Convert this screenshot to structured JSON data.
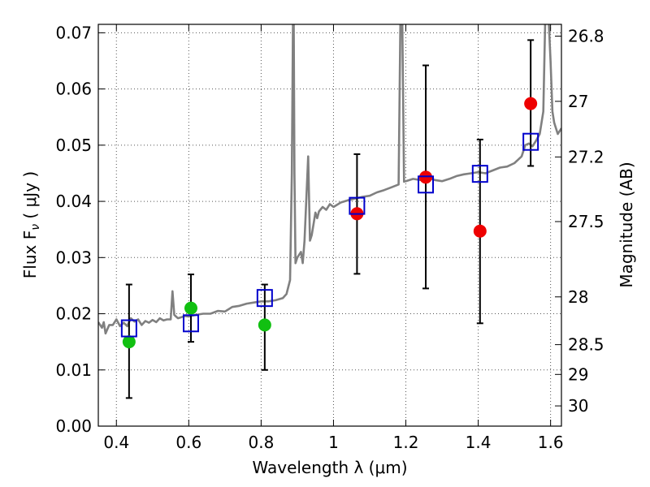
{
  "chart_data": {
    "type": "scatter",
    "xlabel": "Wavelength  λ (μm)",
    "ylabel": "Flux  F",
    "ylabel_sub": "ν",
    "ylabel_unit": "  ( μJy )",
    "ylabel_right": "Magnitude (AB)",
    "xlim": [
      0.35,
      1.63
    ],
    "ylim": [
      0.0,
      0.0715
    ],
    "grid": true,
    "x_ticks": [
      0.4,
      0.6,
      0.8,
      1.0,
      1.2,
      1.4,
      1.6
    ],
    "x_tick_labels": [
      "0.4",
      "0.6",
      "0.8",
      "1",
      "1.2",
      "1.4",
      "1.6"
    ],
    "y_ticks": [
      0.0,
      0.01,
      0.02,
      0.03,
      0.04,
      0.05,
      0.06,
      0.07
    ],
    "y_tick_labels": [
      "0.00",
      "0.01",
      "0.02",
      "0.03",
      "0.04",
      "0.05",
      "0.06",
      "0.07"
    ],
    "mag_ticks": [
      {
        "label": "26.8",
        "flux": 0.0694
      },
      {
        "label": "27",
        "flux": 0.0578
      },
      {
        "label": "27.2",
        "flux": 0.0479
      },
      {
        "label": "27.5",
        "flux": 0.0364
      },
      {
        "label": "28",
        "flux": 0.023
      },
      {
        "label": "28.5",
        "flux": 0.0145
      },
      {
        "label": "29",
        "flux": 0.0092
      },
      {
        "label": "30",
        "flux": 0.0036
      }
    ],
    "colors": {
      "model": "#808080",
      "green": "#11c011",
      "red": "#ee0000",
      "blue": "#0000cc",
      "errorbar": "#000000",
      "grid": "#555555"
    },
    "series": [
      {
        "marker": "circle-green",
        "x": [
          0.435,
          0.606,
          0.81
        ],
        "y": [
          0.015,
          0.021,
          0.018
        ],
        "yerr_low": [
          0.005,
          0.015,
          0.01
        ],
        "yerr_high": [
          0.0252,
          0.027,
          0.0252
        ]
      },
      {
        "marker": "circle-red",
        "x": [
          1.065,
          1.255,
          1.405,
          1.545
        ],
        "y": [
          0.0378,
          0.0443,
          0.0347,
          0.0574
        ],
        "yerr_low": [
          0.0271,
          0.0245,
          0.0183,
          0.0463
        ],
        "yerr_high": [
          0.0484,
          0.0642,
          0.051,
          0.0687
        ]
      },
      {
        "marker": "square-blue",
        "x": [
          0.435,
          0.606,
          0.81,
          1.065,
          1.255,
          1.405,
          1.545
        ],
        "y": [
          0.0174,
          0.0183,
          0.0228,
          0.0392,
          0.043,
          0.0449,
          0.0506
        ]
      }
    ],
    "model_spectrum": {
      "x": [
        0.35,
        0.36,
        0.365,
        0.37,
        0.38,
        0.39,
        0.4,
        0.41,
        0.42,
        0.43,
        0.44,
        0.45,
        0.46,
        0.47,
        0.48,
        0.49,
        0.5,
        0.51,
        0.52,
        0.53,
        0.54,
        0.55,
        0.555,
        0.56,
        0.565,
        0.57,
        0.58,
        0.59,
        0.6,
        0.62,
        0.64,
        0.66,
        0.68,
        0.7,
        0.72,
        0.74,
        0.76,
        0.78,
        0.8,
        0.82,
        0.84,
        0.86,
        0.87,
        0.88,
        0.885,
        0.888,
        0.89,
        0.892,
        0.895,
        0.9,
        0.91,
        0.915,
        0.92,
        0.93,
        0.935,
        0.94,
        0.95,
        0.955,
        0.96,
        0.97,
        0.98,
        0.99,
        1.0,
        1.02,
        1.04,
        1.06,
        1.08,
        1.1,
        1.12,
        1.14,
        1.16,
        1.18,
        1.185,
        1.19,
        1.195,
        1.2,
        1.22,
        1.24,
        1.26,
        1.28,
        1.3,
        1.32,
        1.34,
        1.36,
        1.38,
        1.4,
        1.42,
        1.44,
        1.46,
        1.48,
        1.5,
        1.52,
        1.53,
        1.54,
        1.55,
        1.56,
        1.57,
        1.58,
        1.585,
        1.59,
        1.595,
        1.6,
        1.605,
        1.61,
        1.615,
        1.62,
        1.625,
        1.63
      ],
      "y": [
        0.0185,
        0.0175,
        0.0185,
        0.0165,
        0.018,
        0.018,
        0.019,
        0.0178,
        0.0184,
        0.0178,
        0.0192,
        0.0186,
        0.019,
        0.018,
        0.0187,
        0.0184,
        0.0189,
        0.0185,
        0.0192,
        0.0188,
        0.019,
        0.019,
        0.024,
        0.0198,
        0.0195,
        0.0192,
        0.0194,
        0.0196,
        0.0195,
        0.0198,
        0.02,
        0.02,
        0.0205,
        0.0204,
        0.0212,
        0.0214,
        0.0218,
        0.022,
        0.0222,
        0.0222,
        0.0224,
        0.0228,
        0.0235,
        0.026,
        0.045,
        0.072,
        0.072,
        0.045,
        0.029,
        0.03,
        0.031,
        0.029,
        0.033,
        0.048,
        0.033,
        0.034,
        0.038,
        0.037,
        0.0382,
        0.039,
        0.0385,
        0.0395,
        0.039,
        0.0398,
        0.0402,
        0.0405,
        0.0408,
        0.041,
        0.0416,
        0.042,
        0.0425,
        0.043,
        0.072,
        0.072,
        0.0435,
        0.0436,
        0.044,
        0.0438,
        0.0442,
        0.0438,
        0.0436,
        0.044,
        0.0445,
        0.0448,
        0.045,
        0.0452,
        0.045,
        0.0455,
        0.046,
        0.0462,
        0.0468,
        0.048,
        0.05,
        0.0503,
        0.0498,
        0.0508,
        0.052,
        0.056,
        0.072,
        0.072,
        0.072,
        0.065,
        0.056,
        0.054,
        0.053,
        0.052,
        0.0525,
        0.053
      ]
    }
  }
}
